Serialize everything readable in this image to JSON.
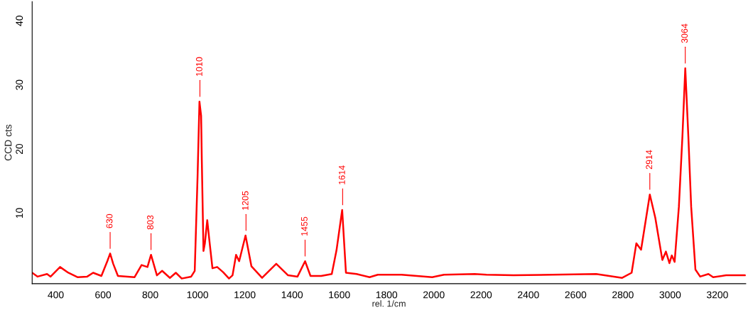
{
  "chart_data": {
    "type": "line",
    "xlabel": "rel. 1/cm",
    "ylabel": "CCD cts",
    "xlim": [
      300,
      3320
    ],
    "ylim": [
      -1,
      43
    ],
    "xticks": [
      400,
      600,
      800,
      1000,
      1200,
      1400,
      1600,
      1800,
      2000,
      2200,
      2400,
      2600,
      2800,
      3000,
      3200
    ],
    "yticks": [
      10,
      20,
      30,
      40
    ],
    "grid": false,
    "legend": false,
    "marker": "none",
    "line_style": "solid",
    "series": [
      {
        "color": "#ff0000",
        "x": [
          300,
          323,
          363,
          378,
          418,
          453,
          493,
          533,
          558,
          593,
          618,
          630,
          643,
          663,
          703,
          733,
          763,
          788,
          803,
          828,
          850,
          883,
          908,
          933,
          973,
          988,
          1000,
          1008,
          1015,
          1018,
          1025,
          1031,
          1041,
          1048,
          1063,
          1083,
          1108,
          1133,
          1148,
          1163,
          1176,
          1203,
          1228,
          1273,
          1333,
          1383,
          1423,
          1455,
          1478,
          1523,
          1568,
          1588,
          1612,
          1628,
          1673,
          1728,
          1763,
          1863,
          1993,
          2043,
          2173,
          2223,
          2337,
          2687,
          2797,
          2837,
          2857,
          2877,
          2914,
          2937,
          2967,
          2982,
          2997,
          3007,
          3019,
          3037,
          3052,
          3064,
          3077,
          3089,
          3107,
          3127,
          3162,
          3182,
          3237,
          3317
        ],
        "values": [
          0.7,
          0.1,
          0.5,
          0.1,
          1.6,
          0.7,
          0.0,
          0.1,
          0.7,
          0.2,
          2.5,
          3.7,
          2.1,
          0.2,
          0.1,
          0.0,
          1.9,
          1.6,
          3.5,
          0.3,
          1.0,
          -0.1,
          0.7,
          -0.2,
          0.1,
          1.0,
          15.7,
          27.4,
          25.2,
          18.2,
          4.1,
          5.3,
          8.9,
          6.4,
          1.4,
          1.6,
          0.8,
          -0.2,
          0.3,
          3.5,
          2.5,
          6.5,
          1.7,
          -0.1,
          2.1,
          0.3,
          0.1,
          2.5,
          0.2,
          0.2,
          0.5,
          4.2,
          10.5,
          0.7,
          0.5,
          0.0,
          0.4,
          0.4,
          0.0,
          0.4,
          0.5,
          0.4,
          0.3,
          0.5,
          -0.1,
          0.7,
          5.3,
          4.3,
          12.9,
          9.3,
          2.7,
          4.0,
          2.2,
          3.4,
          2.4,
          11,
          22,
          32.6,
          22,
          11,
          1.2,
          0.1,
          0.5,
          0.0,
          0.3,
          0.3
        ]
      }
    ],
    "annotations": [
      {
        "text": "630",
        "x": 630,
        "y": 3.7
      },
      {
        "text": "803",
        "x": 803,
        "y": 3.5
      },
      {
        "text": "1010",
        "x": 1010,
        "y": 27.4
      },
      {
        "text": "1205",
        "x": 1205,
        "y": 6.5
      },
      {
        "text": "1455",
        "x": 1455,
        "y": 2.5
      },
      {
        "text": "1614",
        "x": 1614,
        "y": 10.5
      },
      {
        "text": "2914",
        "x": 2914,
        "y": 12.9
      },
      {
        "text": "3064",
        "x": 3064,
        "y": 32.6
      }
    ]
  }
}
